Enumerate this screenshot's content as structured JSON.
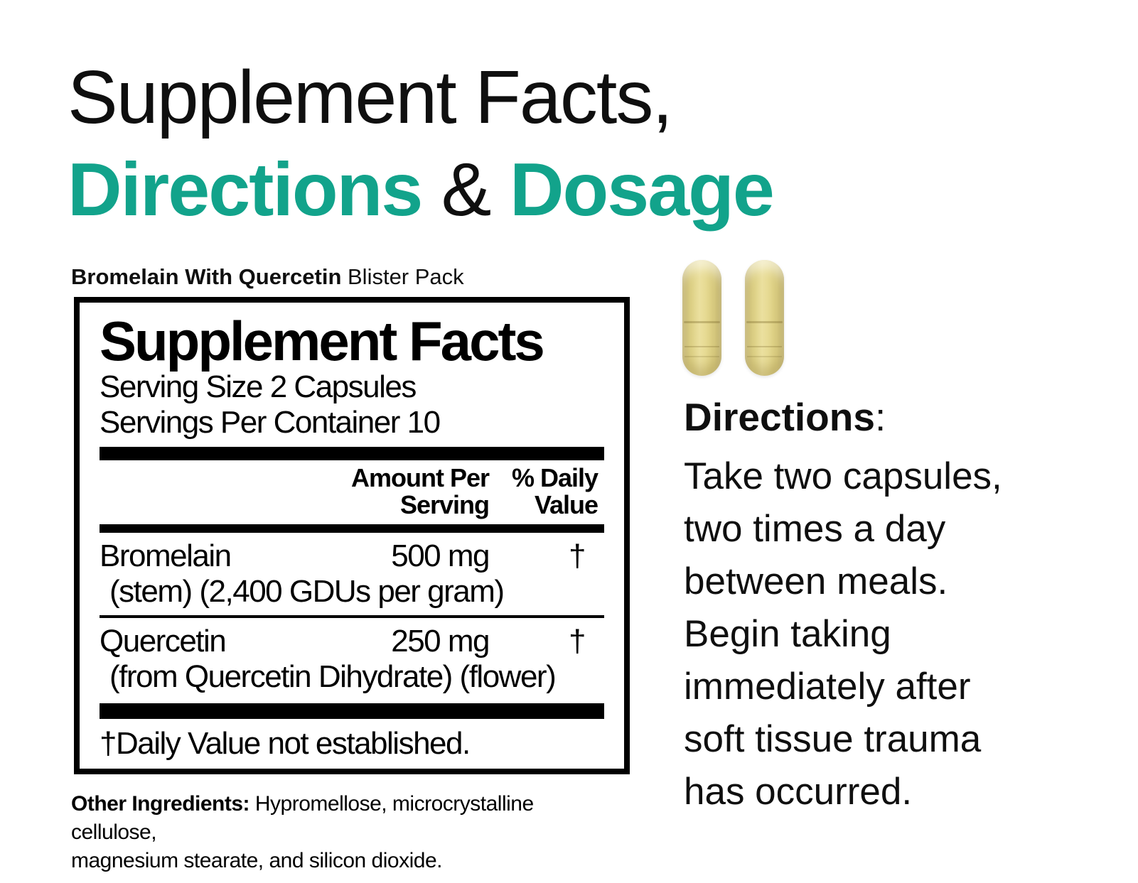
{
  "colors": {
    "accent_teal": "#12a38b",
    "ink": "#000000",
    "capsule_yellow": "#e7db94"
  },
  "title": {
    "line1": "Supplement Facts,",
    "line2_directions": "Directions",
    "line2_ampersand": " & ",
    "line2_dosage": "Dosage"
  },
  "product": {
    "name_bold": "Bromelain With Quercetin",
    "name_regular": " Blister Pack"
  },
  "panel": {
    "heading": "Supplement Facts",
    "serving_size": "Serving Size 2 Capsules",
    "servings_per_container": "Servings Per Container 10",
    "columns": {
      "amount_line1": "Amount Per",
      "amount_line2": "Serving",
      "dv_line1": "% Daily",
      "dv_line2": "Value"
    },
    "rows": [
      {
        "name": "Bromelain",
        "detail": "(stem) (2,400 GDUs per gram)",
        "amount": "500 mg",
        "daily_value": "†"
      },
      {
        "name": "Quercetin",
        "detail": "(from Quercetin Dihydrate) (flower)",
        "amount": "250 mg",
        "daily_value": "†"
      }
    ],
    "footnote": "†Daily Value not established."
  },
  "other_ingredients": {
    "label": "Other Ingredients:",
    "text": " Hypromellose, microcrystalline cellulose,\nmagnesium stearate, and silicon dioxide."
  },
  "capsules": {
    "count": 2
  },
  "directions": {
    "heading": "Directions",
    "colon": ":",
    "body": "Take two capsules,\ntwo times a day\nbetween meals.\nBegin taking\nimmediately after\nsoft tissue trauma\nhas occurred."
  }
}
